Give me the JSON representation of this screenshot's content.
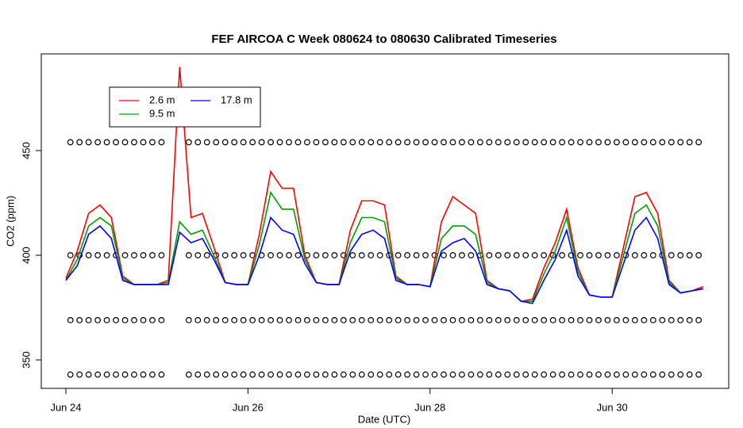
{
  "chart_data": {
    "type": "line",
    "title": "FEF AIRCOA C  Week 080624 to 080630  Calibrated Timeseries",
    "xlabel": "Date (UTC)",
    "ylabel": "CO2 (ppm)",
    "xlim": [
      -0.27,
      7.28
    ],
    "ylim": [
      336.4,
      496.2
    ],
    "xticks": [
      {
        "value": 0,
        "label": "Jun 24"
      },
      {
        "value": 2,
        "label": "Jun 26"
      },
      {
        "value": 4,
        "label": "Jun 28"
      },
      {
        "value": 6,
        "label": "Jun 30"
      }
    ],
    "yticks": [
      350,
      400,
      450
    ],
    "grid": false,
    "legend": "top-left",
    "x": [
      0,
      0.125,
      0.25,
      0.375,
      0.5,
      0.625,
      0.75,
      0.875,
      1,
      1.125,
      1.25,
      1.375,
      1.5,
      1.625,
      1.75,
      1.875,
      2,
      2.125,
      2.25,
      2.375,
      2.5,
      2.625,
      2.75,
      2.875,
      3,
      3.125,
      3.25,
      3.375,
      3.5,
      3.625,
      3.75,
      3.875,
      4,
      4.125,
      4.25,
      4.375,
      4.5,
      4.625,
      4.75,
      4.875,
      5,
      5.125,
      5.25,
      5.375,
      5.5,
      5.625,
      5.75,
      5.875,
      6,
      6.125,
      6.25,
      6.375,
      6.5,
      6.625,
      6.75,
      6.875,
      7
    ],
    "series": [
      {
        "name": "2.6 m",
        "color": "#ff0000",
        "values": [
          389,
          402,
          420,
          424,
          418,
          390,
          386,
          386,
          386,
          388,
          490,
          418,
          420,
          404,
          387,
          386,
          386,
          410,
          440,
          432,
          432,
          400,
          387,
          386,
          386,
          412,
          426,
          426,
          424,
          390,
          386,
          386,
          385,
          416,
          428,
          424,
          420,
          388,
          384,
          383,
          378,
          379,
          394,
          406,
          422,
          394,
          381,
          380,
          380,
          404,
          428,
          430,
          420,
          388,
          382,
          383,
          385
        ]
      },
      {
        "name": "9.5 m",
        "color": "#00a000",
        "values": [
          388,
          398,
          414,
          418,
          414,
          389,
          386,
          386,
          386,
          387,
          416,
          410,
          412,
          400,
          387,
          386,
          386,
          405,
          430,
          422,
          422,
          398,
          387,
          386,
          386,
          406,
          418,
          418,
          416,
          389,
          386,
          386,
          385,
          408,
          414,
          414,
          410,
          387,
          384,
          383,
          378,
          378,
          391,
          402,
          418,
          392,
          381,
          380,
          380,
          400,
          420,
          424,
          414,
          387,
          382,
          383,
          384
        ]
      },
      {
        "name": "17.8 m",
        "color": "#0000ff",
        "values": [
          388,
          395,
          410,
          414,
          408,
          388,
          386,
          386,
          386,
          386,
          411,
          406,
          408,
          398,
          387,
          386,
          386,
          400,
          418,
          412,
          410,
          396,
          387,
          386,
          386,
          402,
          410,
          412,
          408,
          388,
          386,
          386,
          385,
          402,
          406,
          408,
          402,
          386,
          384,
          383,
          378,
          377,
          388,
          398,
          412,
          390,
          381,
          380,
          380,
          396,
          412,
          418,
          408,
          386,
          382,
          383,
          384
        ]
      }
    ],
    "calibration": {
      "levels": [
        454,
        400,
        369,
        343
      ],
      "x": [
        0.05,
        0.15,
        0.25,
        0.35,
        0.45,
        0.55,
        0.65,
        0.75,
        0.85,
        0.95,
        1.05,
        1.35,
        1.45,
        1.55,
        1.65,
        1.75,
        1.85,
        1.95,
        2.05,
        2.15,
        2.25,
        2.35,
        2.45,
        2.55,
        2.65,
        2.75,
        2.85,
        2.95,
        3.05,
        3.15,
        3.25,
        3.35,
        3.45,
        3.55,
        3.65,
        3.75,
        3.85,
        3.95,
        4.05,
        4.15,
        4.25,
        4.35,
        4.45,
        4.55,
        4.65,
        4.75,
        4.85,
        4.95,
        5.05,
        5.15,
        5.25,
        5.35,
        5.45,
        5.55,
        5.65,
        5.75,
        5.85,
        5.95,
        6.05,
        6.15,
        6.25,
        6.35,
        6.45,
        6.55,
        6.65,
        6.75,
        6.85,
        6.95
      ]
    }
  }
}
